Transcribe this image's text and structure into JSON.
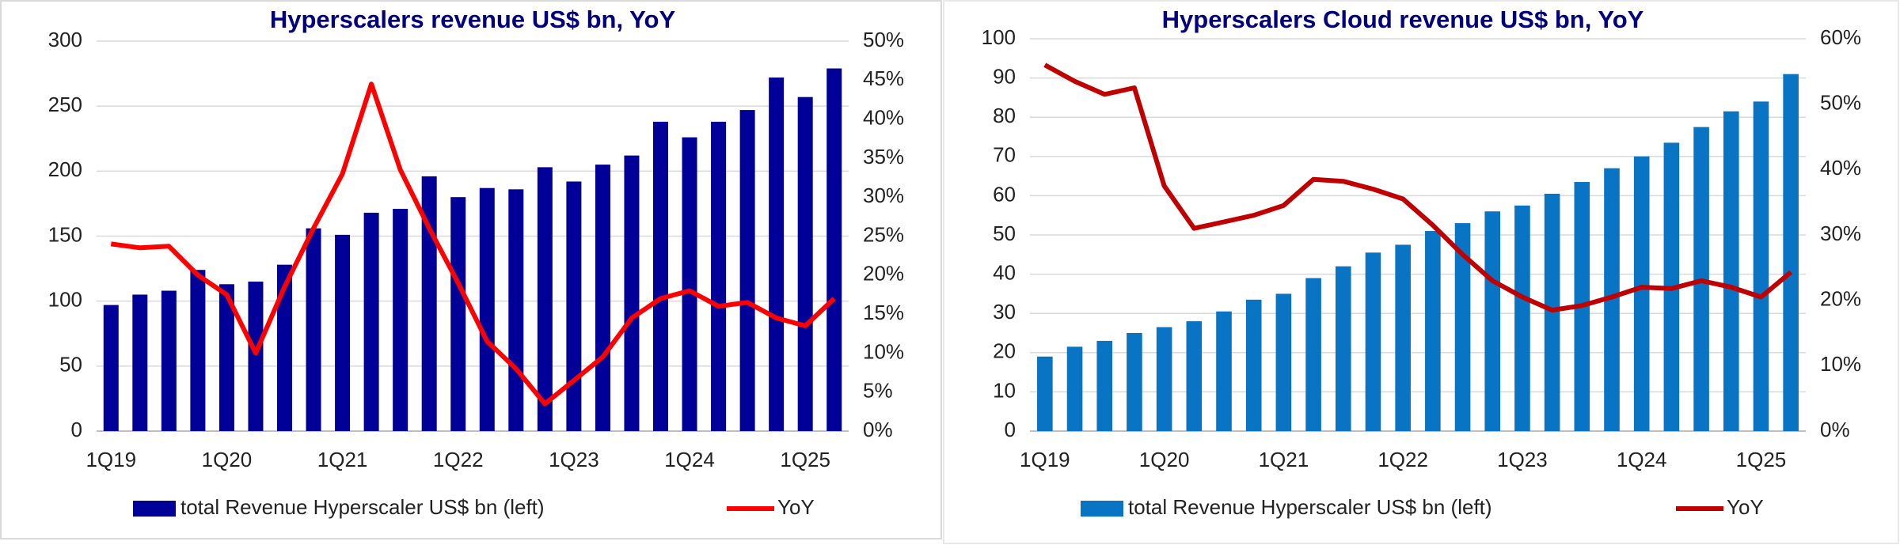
{
  "chart_data": [
    {
      "type": "bar",
      "title": "Hyperscalers revenue US$ bn, YoY",
      "categories": [
        "1Q19",
        null,
        null,
        null,
        "1Q20",
        null,
        null,
        null,
        "1Q21",
        null,
        null,
        null,
        "1Q22",
        null,
        null,
        null,
        "1Q23",
        null,
        null,
        null,
        "1Q24",
        null,
        null,
        null,
        "1Q25",
        null
      ],
      "series": [
        {
          "name": "total Revenue Hyperscaler US$ bn (left)",
          "type": "bar",
          "color": "#000099",
          "values": [
            97,
            105,
            108,
            124,
            113,
            115,
            128,
            156,
            151,
            168,
            171,
            196,
            180,
            187,
            186,
            203,
            192,
            205,
            212,
            238,
            226,
            238,
            247,
            272,
            257,
            279
          ]
        },
        {
          "name": "YoY",
          "type": "line",
          "axis": "y2",
          "color": "#ff0000",
          "values": [
            24.0,
            23.5,
            23.7,
            20.0,
            17.5,
            10.0,
            18.5,
            26.0,
            33.0,
            44.5,
            33.5,
            26.0,
            19.0,
            11.5,
            8.0,
            3.5,
            6.5,
            9.5,
            14.5,
            17.0,
            18.0,
            16.0,
            16.5,
            14.5,
            13.5,
            17.0
          ]
        }
      ],
      "ylim": [
        0,
        300
      ],
      "yticks": [
        0,
        50,
        100,
        150,
        200,
        250,
        300
      ],
      "y2lim": [
        0,
        50
      ],
      "y2ticks": [
        {
          "value": 0,
          "label": "0%"
        },
        {
          "value": 5,
          "label": "5%"
        },
        {
          "value": 10,
          "label": "10%"
        },
        {
          "value": 15,
          "label": "15%"
        },
        {
          "value": 20,
          "label": "20%"
        },
        {
          "value": 25,
          "label": "25%"
        },
        {
          "value": 30,
          "label": "30%"
        },
        {
          "value": 35,
          "label": "35%"
        },
        {
          "value": 40,
          "label": "40%"
        },
        {
          "value": 45,
          "label": "45%"
        },
        {
          "value": 50,
          "label": "50%"
        }
      ],
      "grid": true,
      "legend": "bottom"
    },
    {
      "type": "bar",
      "title": "Hyperscalers Cloud revenue US$ bn, YoY",
      "categories": [
        "1Q19",
        null,
        null,
        null,
        "1Q20",
        null,
        null,
        null,
        "1Q21",
        null,
        null,
        null,
        "1Q22",
        null,
        null,
        null,
        "1Q23",
        null,
        null,
        null,
        "1Q24",
        null,
        null,
        null,
        "1Q25",
        null
      ],
      "series": [
        {
          "name": "total Revenue Hyperscaler US$ bn (left)",
          "type": "bar",
          "color": "#0a74c4",
          "values": [
            19,
            21.5,
            23,
            25,
            26.5,
            28,
            30.5,
            33.5,
            35,
            39,
            42,
            45.5,
            47.5,
            51,
            53,
            56,
            57.5,
            60.5,
            63.5,
            67,
            70,
            73.5,
            77.5,
            81.5,
            84,
            91
          ]
        },
        {
          "name": "YoY",
          "type": "line",
          "axis": "y2",
          "color": "#c00000",
          "values": [
            56,
            53.5,
            51.5,
            52.5,
            37.5,
            31,
            32,
            33,
            34.5,
            38.5,
            38.2,
            37,
            35.5,
            31.5,
            27,
            23,
            20.5,
            18.5,
            19.2,
            20.5,
            22,
            21.8,
            23,
            22,
            20.5,
            24.3
          ]
        }
      ],
      "ylim": [
        0,
        100
      ],
      "yticks": [
        0,
        10,
        20,
        30,
        40,
        50,
        60,
        70,
        80,
        90,
        100
      ],
      "y2lim": [
        0,
        60
      ],
      "y2ticks": [
        {
          "value": 0,
          "label": "0%"
        },
        {
          "value": 10,
          "label": "10%"
        },
        {
          "value": 20,
          "label": "20%"
        },
        {
          "value": 30,
          "label": "30%"
        },
        {
          "value": 40,
          "label": "40%"
        },
        {
          "value": 50,
          "label": "50%"
        },
        {
          "value": 60,
          "label": "60%"
        }
      ],
      "grid": true,
      "legend": "bottom"
    }
  ]
}
